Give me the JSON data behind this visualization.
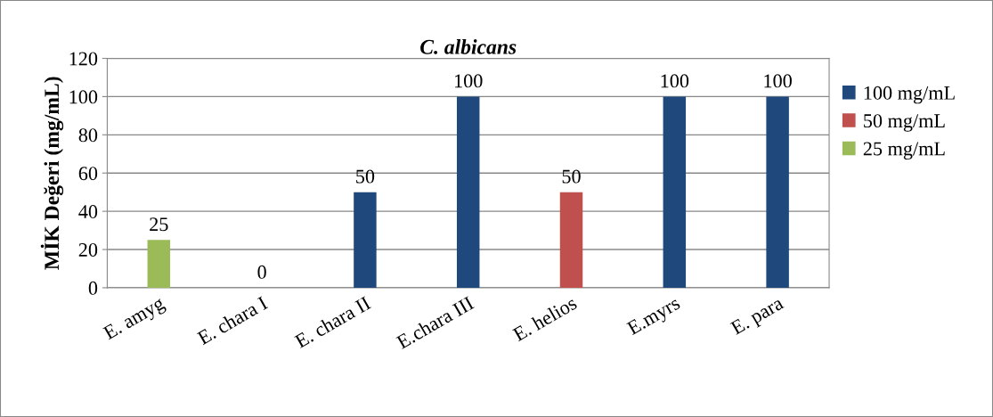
{
  "chart_data": {
    "type": "bar",
    "title": "C. albicans",
    "ylabel": "MİK Değeri (mg/mL)",
    "categories": [
      "E. amyg",
      "E. chara I",
      "E. chara II",
      "E.chara III",
      "E. helios",
      "E.myrs",
      "E. para"
    ],
    "series": [
      {
        "name": "100 mg/mL",
        "color": "#1f497d",
        "values": [
          null,
          0,
          50,
          100,
          null,
          100,
          100
        ]
      },
      {
        "name": "50 mg/mL",
        "color": "#c0504d",
        "values": [
          null,
          null,
          null,
          null,
          50,
          null,
          null
        ]
      },
      {
        "name": "25 mg/mL",
        "color": "#9bbb59",
        "values": [
          25,
          null,
          null,
          null,
          null,
          null,
          null
        ]
      }
    ],
    "ylim": [
      0,
      120
    ],
    "yticks": [
      0,
      20,
      40,
      60,
      80,
      100,
      120
    ],
    "grid": "y",
    "legend": "right",
    "data_labels": true
  }
}
